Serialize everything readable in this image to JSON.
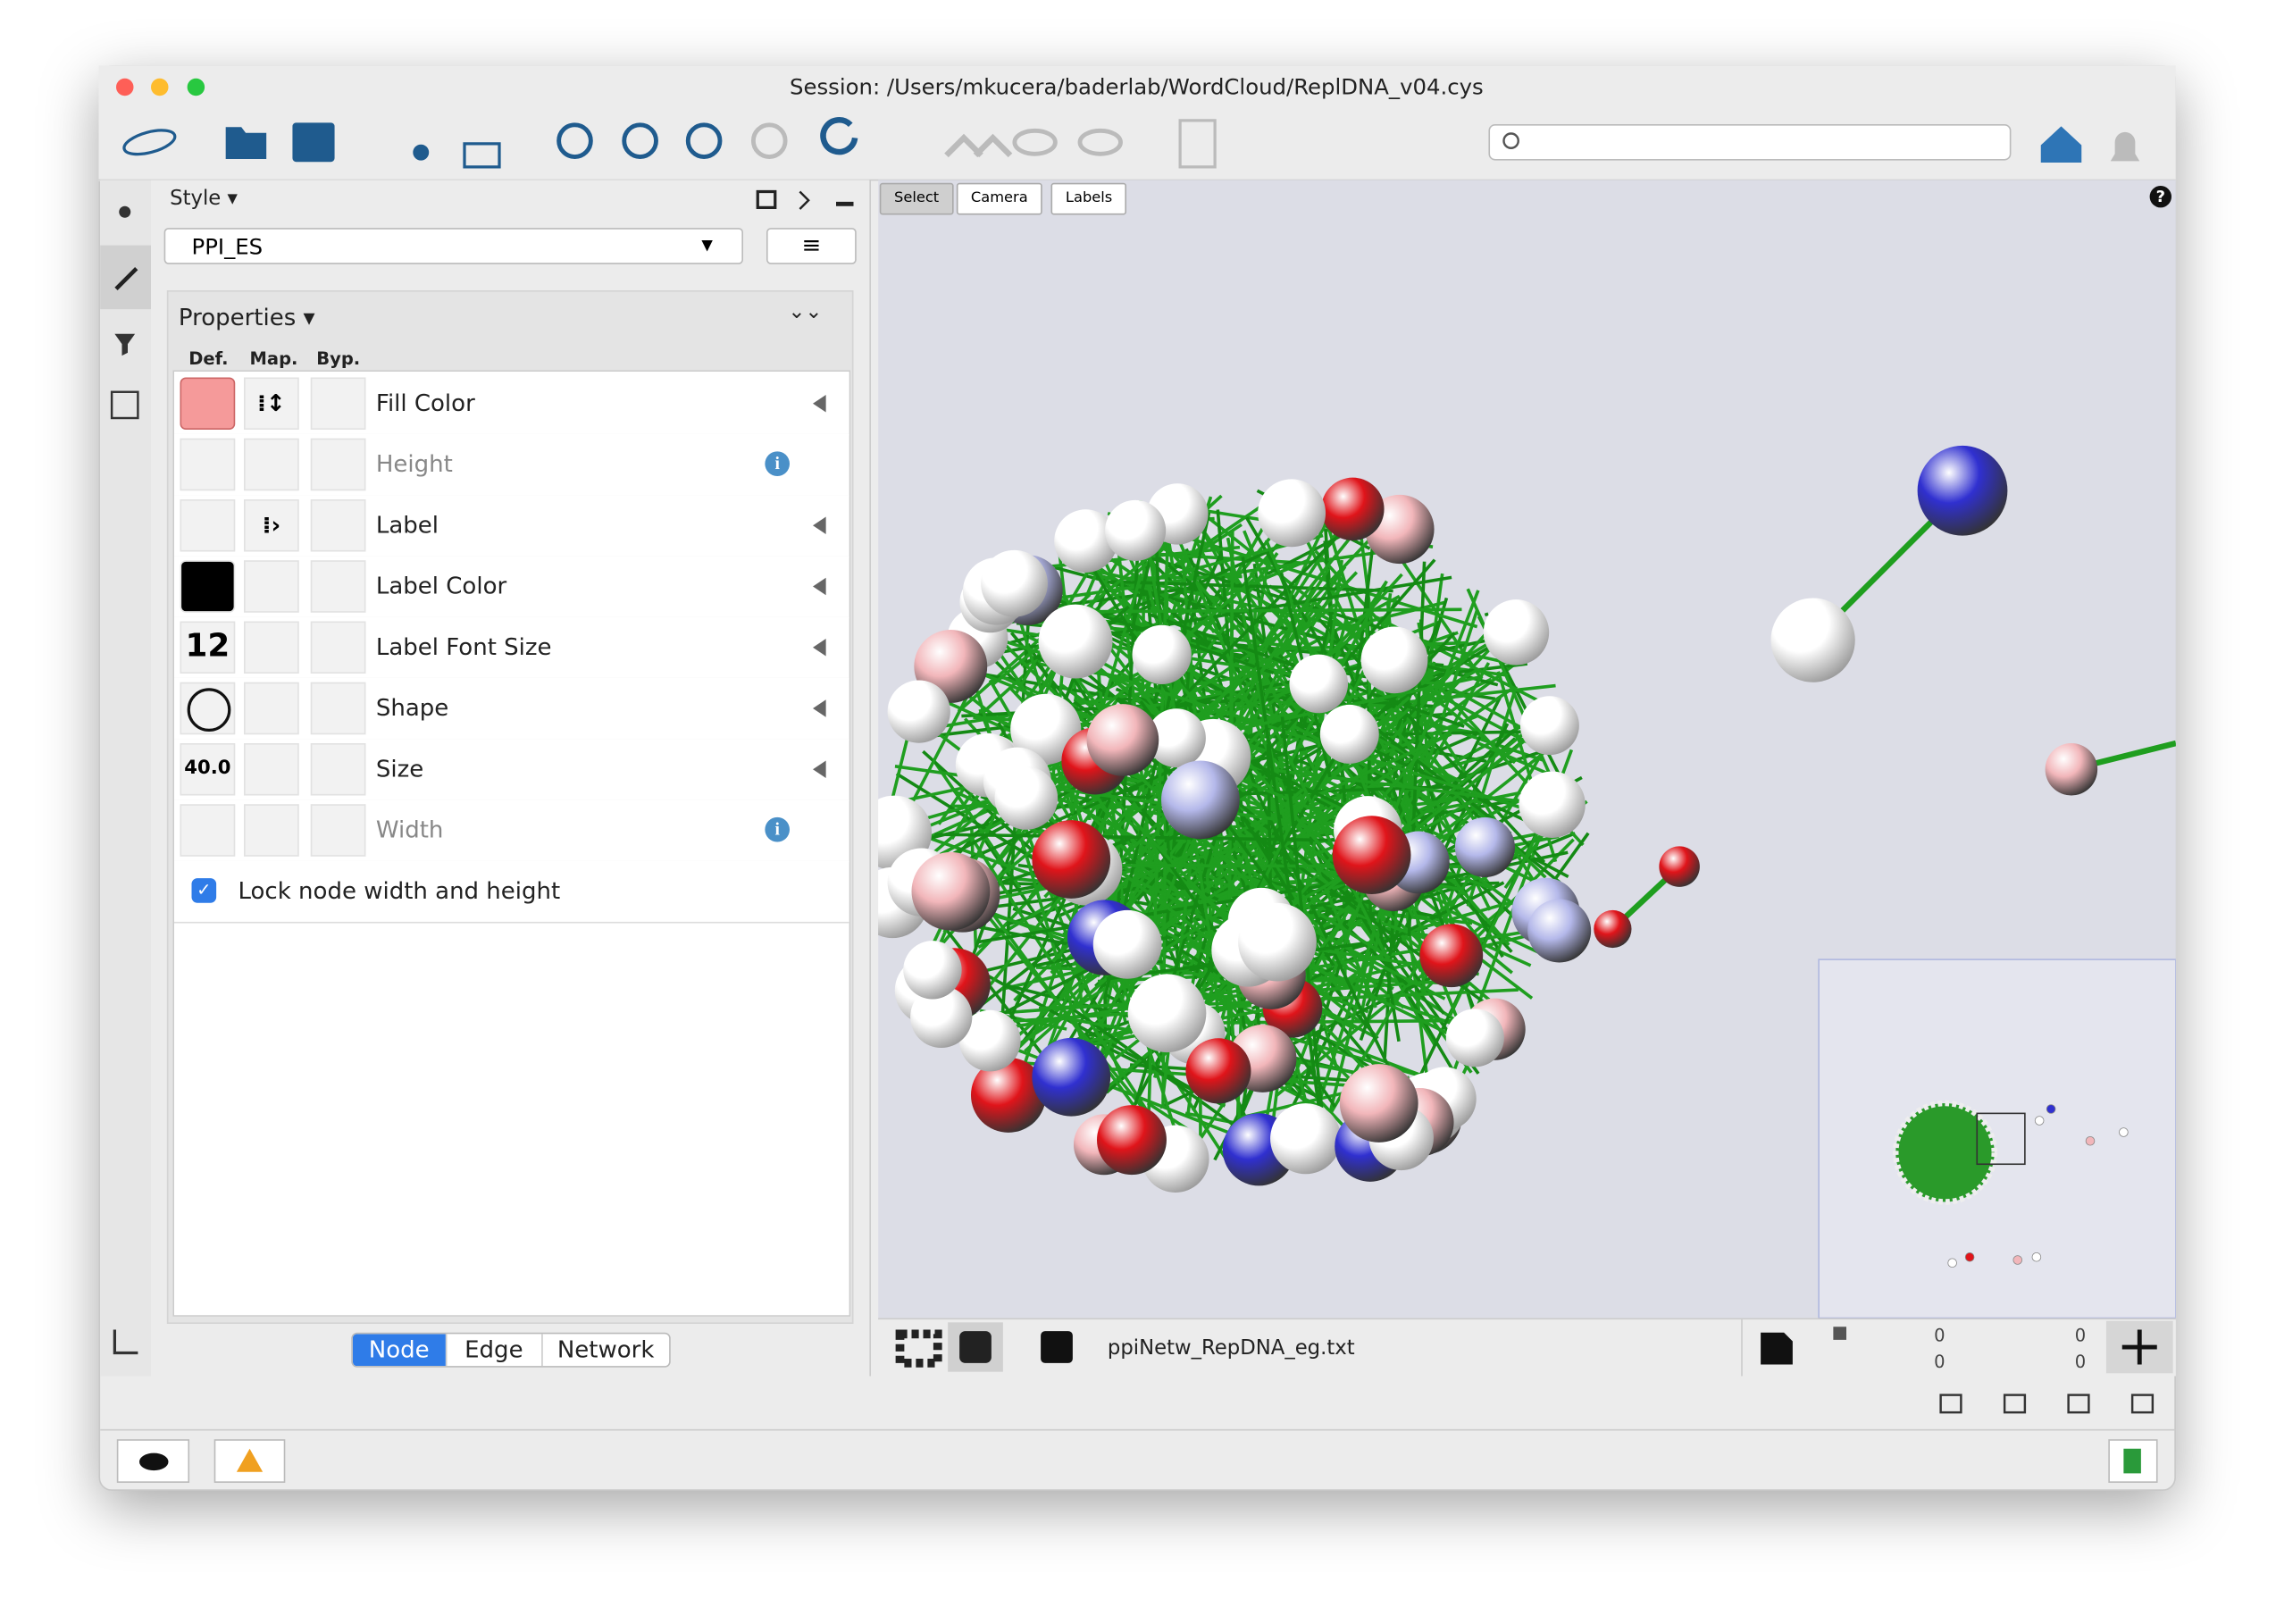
{
  "window": {
    "title": "Session: /Users/mkucera/baderlab/WordCloud/ReplDNA_v04.cys"
  },
  "style_panel": {
    "header": "Style",
    "style_name": "PPI_ES",
    "properties": {
      "title": "Properties",
      "columns": [
        "Def.",
        "Map.",
        "Byp."
      ],
      "rows": [
        {
          "label": "Fill Color"
        },
        {
          "label": "Height"
        },
        {
          "label": "Label"
        },
        {
          "label": "Label Color"
        },
        {
          "label": "Label Font Size",
          "default": "12"
        },
        {
          "label": "Shape"
        },
        {
          "label": "Size",
          "default": "40.0"
        },
        {
          "label": "Width"
        }
      ],
      "lock": "Lock node width and height"
    },
    "tabs": [
      "Node",
      "Edge",
      "Network"
    ]
  },
  "network_view": {
    "buttons": [
      "Select",
      "Camera",
      "Labels"
    ],
    "help": "?",
    "network_name": "ppiNetw_RepDNA_eg.txt",
    "counts": [
      "0",
      "0",
      "0",
      "0"
    ]
  }
}
